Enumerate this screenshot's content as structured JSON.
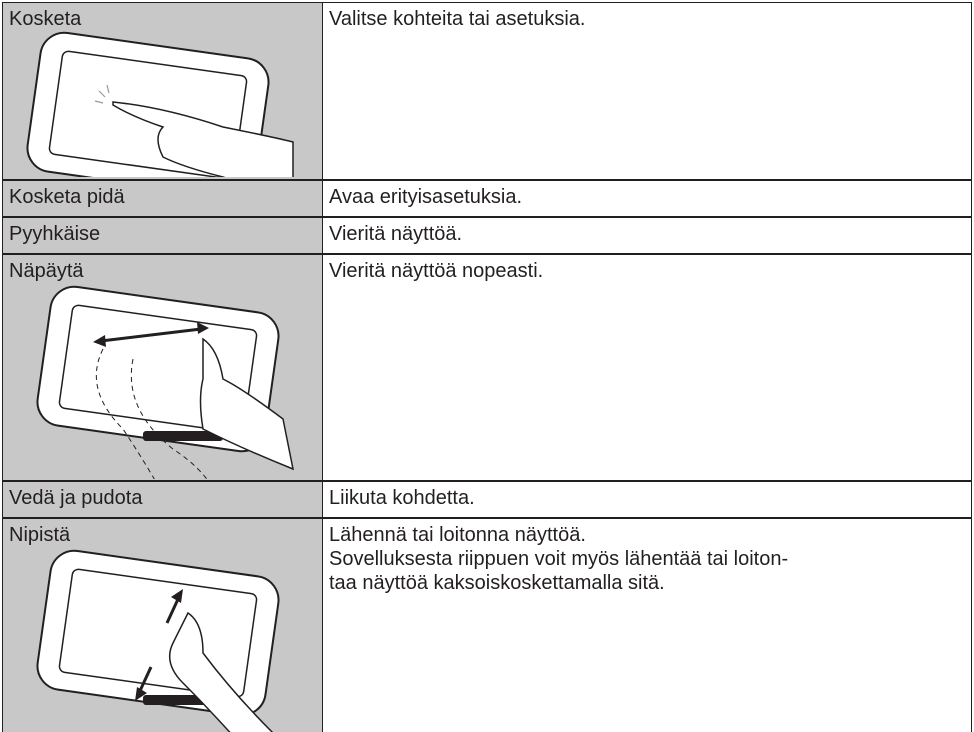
{
  "table": {
    "rows": [
      {
        "gesture": "Kosketa",
        "description": [
          "Valitse kohteita tai asetuksia."
        ]
      },
      {
        "gesture": "Kosketa pidä",
        "description": [
          "Avaa erityisasetuksia."
        ]
      },
      {
        "gesture": "Pyyhkäise",
        "description": [
          "Vieritä näyttöä."
        ]
      },
      {
        "gesture": "Näpäytä",
        "description": [
          "Vieritä näyttöä nopeasti."
        ]
      },
      {
        "gesture": "Vedä ja pudota",
        "description": [
          "Liikuta kohdetta."
        ]
      },
      {
        "gesture": "Nipistä",
        "description": [
          "Lähennä tai loitonna näyttöä.",
          "Sovelluksesta riippuen voit myös lähentää tai loiton-",
          "taa näyttöä kaksoiskoskettamalla sitä."
        ]
      }
    ]
  }
}
